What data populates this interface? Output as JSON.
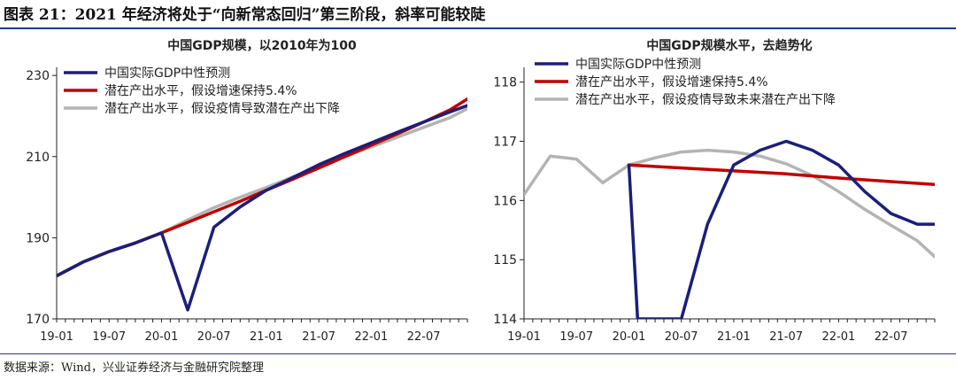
{
  "figure": {
    "title": "图表 21：2021 年经济将处于“向新常态回归”第三阶段，斜率可能较陡",
    "source": "数据来源：Wind，兴业证券经济与金融研究院整理"
  },
  "chart_data": [
    {
      "type": "line",
      "title": "中国GDP规模，以2010年为100",
      "xlabel": "",
      "ylabel": "",
      "x_ticks": [
        "19-01",
        "19-07",
        "20-01",
        "20-07",
        "21-01",
        "21-07",
        "22-01",
        "22-07"
      ],
      "y_ticks": [
        170,
        190,
        210,
        230
      ],
      "ylim": [
        170,
        232
      ],
      "xlim": [
        "2019-01",
        "2022-12"
      ],
      "grid": false,
      "legend_position": "top-left",
      "series": [
        {
          "name": "中国实际GDP中性预测",
          "color": "#1c1e7a",
          "points": [
            [
              "2019-01",
              180.6
            ],
            [
              "2019-04",
              184.0
            ],
            [
              "2019-07",
              186.6
            ],
            [
              "2019-10",
              188.7
            ],
            [
              "2020-01",
              191.2
            ],
            [
              "2020-04",
              172.2
            ],
            [
              "2020-07",
              192.6
            ],
            [
              "2020-10",
              197.6
            ],
            [
              "2021-01",
              201.7
            ],
            [
              "2021-04",
              204.8
            ],
            [
              "2021-07",
              208.0
            ],
            [
              "2021-10",
              210.8
            ],
            [
              "2022-01",
              213.4
            ],
            [
              "2022-04",
              216.0
            ],
            [
              "2022-07",
              218.5
            ],
            [
              "2022-10",
              221.0
            ],
            [
              "2022-12",
              222.6
            ]
          ]
        },
        {
          "name": "潜在产出水平，假设增速保持5.4%",
          "color": "#c00000",
          "points": [
            [
              "2019-01",
              180.6
            ],
            [
              "2019-04",
              184.0
            ],
            [
              "2019-07",
              186.6
            ],
            [
              "2019-10",
              188.7
            ],
            [
              "2020-01",
              191.2
            ],
            [
              "2020-04",
              193.8
            ],
            [
              "2020-07",
              196.4
            ],
            [
              "2020-10",
              199.0
            ],
            [
              "2021-01",
              201.7
            ],
            [
              "2021-04",
              204.4
            ],
            [
              "2021-07",
              207.2
            ],
            [
              "2021-10",
              210.0
            ],
            [
              "2022-01",
              212.8
            ],
            [
              "2022-04",
              215.6
            ],
            [
              "2022-07",
              218.5
            ],
            [
              "2022-10",
              221.5
            ],
            [
              "2022-12",
              224.2
            ]
          ]
        },
        {
          "name": "潜在产出水平，假设疫情导致潜在产出下降",
          "color": "#b4b4b4",
          "points": [
            [
              "2019-01",
              180.6
            ],
            [
              "2019-04",
              184.0
            ],
            [
              "2019-07",
              186.6
            ],
            [
              "2019-10",
              188.7
            ],
            [
              "2020-01",
              191.2
            ],
            [
              "2020-04",
              194.4
            ],
            [
              "2020-07",
              197.4
            ],
            [
              "2020-10",
              200.0
            ],
            [
              "2021-01",
              202.4
            ],
            [
              "2021-04",
              205.0
            ],
            [
              "2021-07",
              207.5
            ],
            [
              "2021-10",
              210.0
            ],
            [
              "2022-01",
              212.4
            ],
            [
              "2022-04",
              214.8
            ],
            [
              "2022-07",
              217.2
            ],
            [
              "2022-10",
              219.6
            ],
            [
              "2022-12",
              221.8
            ]
          ]
        }
      ]
    },
    {
      "type": "line",
      "title": "中国GDP规模水平，去趋势化",
      "xlabel": "",
      "ylabel": "",
      "x_ticks": [
        "19-01",
        "19-07",
        "20-01",
        "20-07",
        "21-01",
        "21-07",
        "22-01",
        "22-07"
      ],
      "y_ticks": [
        114,
        115,
        116,
        117,
        118
      ],
      "ylim": [
        114,
        118.25
      ],
      "xlim": [
        "2019-01",
        "2022-12"
      ],
      "grid": false,
      "legend_position": "top-left",
      "series": [
        {
          "name": "中国实际GDP中性预测",
          "color": "#1c1e7a",
          "points": [
            [
              "2020-01",
              116.6
            ],
            [
              "2020-02",
              114.0
            ],
            [
              "2020-07",
              114.0
            ],
            [
              "2020-10",
              115.6
            ],
            [
              "2021-01",
              116.6
            ],
            [
              "2021-04",
              116.85
            ],
            [
              "2021-07",
              117.0
            ],
            [
              "2021-10",
              116.85
            ],
            [
              "2022-01",
              116.6
            ],
            [
              "2022-04",
              116.15
            ],
            [
              "2022-07",
              115.78
            ],
            [
              "2022-10",
              115.6
            ],
            [
              "2022-12",
              115.6
            ]
          ]
        },
        {
          "name": "潜在产出水平，假设增速保持5.4%",
          "color": "#c00000",
          "points": [
            [
              "2020-01",
              116.6
            ],
            [
              "2020-07",
              116.55
            ],
            [
              "2021-01",
              116.5
            ],
            [
              "2021-07",
              116.45
            ],
            [
              "2022-01",
              116.38
            ],
            [
              "2022-07",
              116.32
            ],
            [
              "2022-12",
              116.27
            ]
          ]
        },
        {
          "name": "潜在产出水平，假设疫情导致未来潜在产出下降",
          "color": "#b4b4b4",
          "points": [
            [
              "2019-01",
              116.1
            ],
            [
              "2019-04",
              116.75
            ],
            [
              "2019-07",
              116.7
            ],
            [
              "2019-10",
              116.3
            ],
            [
              "2020-01",
              116.6
            ],
            [
              "2020-04",
              116.72
            ],
            [
              "2020-07",
              116.82
            ],
            [
              "2020-10",
              116.85
            ],
            [
              "2021-01",
              116.82
            ],
            [
              "2021-04",
              116.75
            ],
            [
              "2021-07",
              116.62
            ],
            [
              "2021-10",
              116.42
            ],
            [
              "2022-01",
              116.15
            ],
            [
              "2022-04",
              115.85
            ],
            [
              "2022-07",
              115.58
            ],
            [
              "2022-10",
              115.32
            ],
            [
              "2022-12",
              115.05
            ]
          ]
        }
      ]
    }
  ]
}
